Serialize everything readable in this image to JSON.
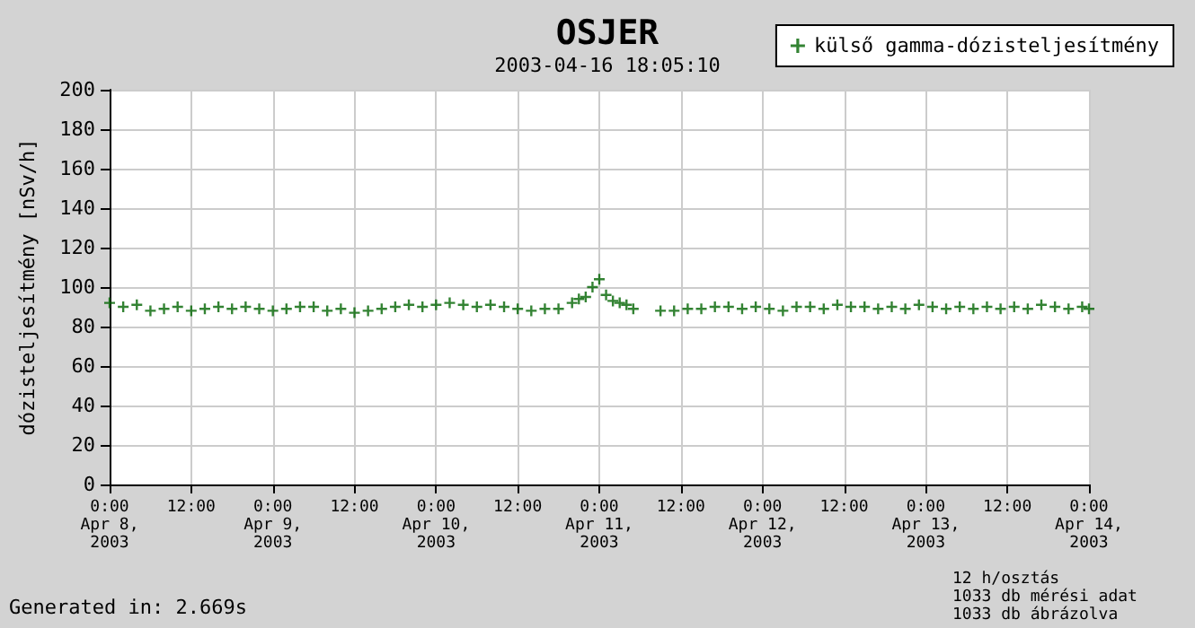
{
  "chart_data": {
    "type": "scatter",
    "title": "OSJER",
    "subtitle": "2003-04-16 18:05:10",
    "ylabel": "dózisteljesítmény [nSv/h]",
    "annotations": [
      "Generated in: 2.669s",
      "12 h/osztás",
      "1033 db mérési adat",
      "1033 db ábrázolva"
    ],
    "series": [
      {
        "name": "külső gamma-dózisteljesítmény",
        "color": "#006400",
        "x": [
          "2003-04-08T00:00",
          "2003-04-08T02:00",
          "2003-04-08T04:00",
          "2003-04-08T06:00",
          "2003-04-08T08:00",
          "2003-04-08T10:00",
          "2003-04-08T12:00",
          "2003-04-08T14:00",
          "2003-04-08T16:00",
          "2003-04-08T18:00",
          "2003-04-08T20:00",
          "2003-04-08T22:00",
          "2003-04-09T00:00",
          "2003-04-09T02:00",
          "2003-04-09T04:00",
          "2003-04-09T06:00",
          "2003-04-09T08:00",
          "2003-04-09T10:00",
          "2003-04-09T12:00",
          "2003-04-09T14:00",
          "2003-04-09T16:00",
          "2003-04-09T18:00",
          "2003-04-09T20:00",
          "2003-04-09T22:00",
          "2003-04-10T00:00",
          "2003-04-10T02:00",
          "2003-04-10T04:00",
          "2003-04-10T06:00",
          "2003-04-10T08:00",
          "2003-04-10T10:00",
          "2003-04-10T12:00",
          "2003-04-10T14:00",
          "2003-04-10T16:00",
          "2003-04-10T18:00",
          "2003-04-10T20:00",
          "2003-04-10T21:00",
          "2003-04-10T22:00",
          "2003-04-10T23:00",
          "2003-04-11T00:00",
          "2003-04-11T01:00",
          "2003-04-11T02:00",
          "2003-04-11T03:00",
          "2003-04-11T04:00",
          "2003-04-11T05:00",
          "2003-04-11T09:00",
          "2003-04-11T11:00",
          "2003-04-11T13:00",
          "2003-04-11T15:00",
          "2003-04-11T17:00",
          "2003-04-11T19:00",
          "2003-04-11T21:00",
          "2003-04-11T23:00",
          "2003-04-12T01:00",
          "2003-04-12T03:00",
          "2003-04-12T05:00",
          "2003-04-12T07:00",
          "2003-04-12T09:00",
          "2003-04-12T11:00",
          "2003-04-12T13:00",
          "2003-04-12T15:00",
          "2003-04-12T17:00",
          "2003-04-12T19:00",
          "2003-04-12T21:00",
          "2003-04-12T23:00",
          "2003-04-13T01:00",
          "2003-04-13T03:00",
          "2003-04-13T05:00",
          "2003-04-13T07:00",
          "2003-04-13T09:00",
          "2003-04-13T11:00",
          "2003-04-13T13:00",
          "2003-04-13T15:00",
          "2003-04-13T17:00",
          "2003-04-13T19:00",
          "2003-04-13T21:00",
          "2003-04-13T23:00",
          "2003-04-14T00:00"
        ],
        "values": [
          92,
          90,
          91,
          88,
          89,
          90,
          88,
          89,
          90,
          89,
          90,
          89,
          88,
          89,
          90,
          90,
          88,
          89,
          87,
          88,
          89,
          90,
          91,
          90,
          91,
          92,
          91,
          90,
          91,
          90,
          89,
          88,
          89,
          89,
          92,
          94,
          95,
          100,
          104,
          96,
          93,
          92,
          91,
          89,
          88,
          88,
          89,
          89,
          90,
          90,
          89,
          90,
          89,
          88,
          90,
          90,
          89,
          91,
          90,
          90,
          89,
          90,
          89,
          91,
          90,
          89,
          90,
          89,
          90,
          89,
          90,
          89,
          91,
          90,
          89,
          90,
          89
        ]
      }
    ],
    "xlim": [
      "2003-04-08T00:00",
      "2003-04-14T00:00"
    ],
    "xticks": [
      {
        "value": "2003-04-08T00:00",
        "label": "0:00\nApr 8,\n2003"
      },
      {
        "value": "2003-04-08T12:00",
        "label": "12:00"
      },
      {
        "value": "2003-04-09T00:00",
        "label": "0:00\nApr 9,\n2003"
      },
      {
        "value": "2003-04-09T12:00",
        "label": "12:00"
      },
      {
        "value": "2003-04-10T00:00",
        "label": "0:00\nApr 10,\n2003"
      },
      {
        "value": "2003-04-10T12:00",
        "label": "12:00"
      },
      {
        "value": "2003-04-11T00:00",
        "label": "0:00\nApr 11,\n2003"
      },
      {
        "value": "2003-04-11T12:00",
        "label": "12:00"
      },
      {
        "value": "2003-04-12T00:00",
        "label": "0:00\nApr 12,\n2003"
      },
      {
        "value": "2003-04-12T12:00",
        "label": "12:00"
      },
      {
        "value": "2003-04-13T00:00",
        "label": "0:00\nApr 13,\n2003"
      },
      {
        "value": "2003-04-13T12:00",
        "label": "12:00"
      },
      {
        "value": "2003-04-14T00:00",
        "label": "0:00\nApr 14,\n2003"
      }
    ],
    "ylim": [
      0,
      200
    ],
    "yticks": [
      0,
      20,
      40,
      60,
      80,
      100,
      120,
      140,
      160,
      180,
      200
    ],
    "grid": true,
    "legend": "top right",
    "marker": "cross"
  }
}
